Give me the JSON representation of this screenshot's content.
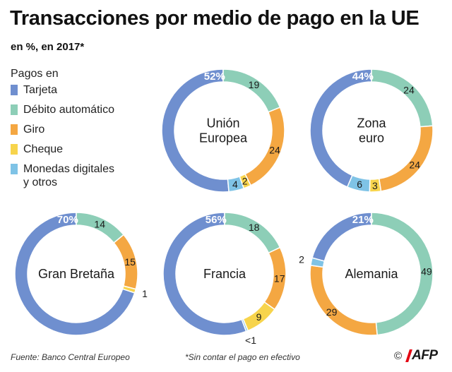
{
  "title": "Transacciones por medio de pago en la UE",
  "subtitle": "en %, en 2017*",
  "legend": {
    "title": "Pagos en",
    "items": [
      {
        "label": "Tarjeta",
        "color": "#6f8fcf"
      },
      {
        "label": "Débito automático",
        "color": "#8dceb7"
      },
      {
        "label": "Giro",
        "color": "#f4a742"
      },
      {
        "label": "Cheque",
        "color": "#f7d44c"
      },
      {
        "label": "Monedas digitales\ny otros",
        "color": "#7fc3e6"
      }
    ]
  },
  "chart_data": [
    {
      "type": "pie",
      "variant": "donut",
      "name": "Unión Europea",
      "center_label": [
        "Unión",
        "Europea"
      ],
      "categories": [
        "Tarjeta",
        "Débito automático",
        "Giro",
        "Cheque",
        "Monedas digitales y otros"
      ],
      "values": [
        52,
        19,
        24,
        2,
        4
      ],
      "labels": [
        "52%",
        "19",
        "24",
        "2",
        "4"
      ]
    },
    {
      "type": "pie",
      "variant": "donut",
      "name": "Zona euro",
      "center_label": [
        "Zona",
        "euro"
      ],
      "categories": [
        "Tarjeta",
        "Débito automático",
        "Giro",
        "Cheque",
        "Monedas digitales y otros"
      ],
      "values": [
        44,
        24,
        24,
        3,
        6
      ],
      "labels": [
        "44%",
        "24",
        "24",
        "3",
        "6"
      ]
    },
    {
      "type": "pie",
      "variant": "donut",
      "name": "Gran Bretaña",
      "center_label": [
        "Gran Bretaña"
      ],
      "categories": [
        "Tarjeta",
        "Débito automático",
        "Giro",
        "Cheque",
        "Monedas digitales y otros"
      ],
      "values": [
        70,
        14,
        15,
        1,
        0
      ],
      "labels": [
        "70%",
        "14",
        "15",
        "1",
        ""
      ]
    },
    {
      "type": "pie",
      "variant": "donut",
      "name": "Francia",
      "center_label": [
        "Francia"
      ],
      "categories": [
        "Tarjeta",
        "Débito automático",
        "Giro",
        "Cheque",
        "Monedas digitales y otros"
      ],
      "values": [
        56,
        18,
        17,
        9,
        0.5
      ],
      "labels": [
        "56%",
        "18",
        "17",
        "9",
        "<1"
      ]
    },
    {
      "type": "pie",
      "variant": "donut",
      "name": "Alemania",
      "center_label": [
        "Alemania"
      ],
      "categories": [
        "Tarjeta",
        "Débito automático",
        "Giro",
        "Cheque",
        "Monedas digitales y otros"
      ],
      "values": [
        21,
        49,
        29,
        0,
        2
      ],
      "labels": [
        "21%",
        "49",
        "29",
        "",
        "2"
      ]
    }
  ],
  "footer": {
    "source": "Fuente: Banco Central Europeo",
    "note": "*Sin contar el pago en efectivo",
    "copyright": "©",
    "agency": "AFP"
  }
}
